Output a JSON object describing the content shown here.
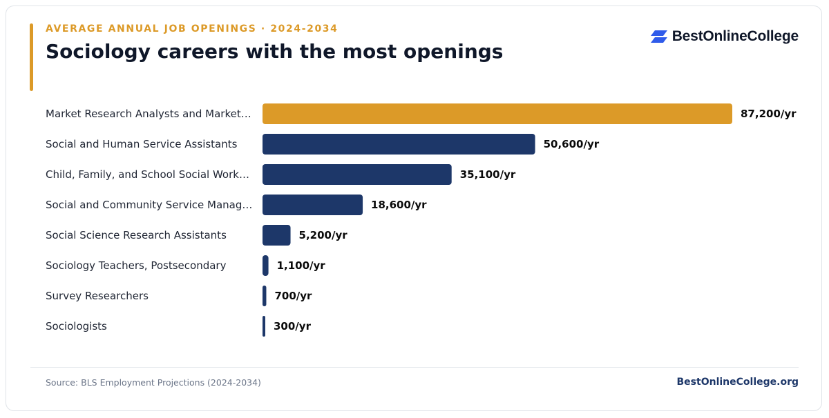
{
  "header": {
    "eyebrow": "AVERAGE ANNUAL JOB OPENINGS · 2024-2034",
    "title": "Sociology careers with the most openings"
  },
  "logo": {
    "text": "BestOnlineCollege",
    "icon": "stacked-parallelogram-logo-icon",
    "color": "#2f5bea"
  },
  "colors": {
    "highlight": "#dc9a28",
    "bar": "#1d3769",
    "label": "#1f2533",
    "value": "#0a0a0a"
  },
  "chart_data": {
    "type": "bar",
    "orientation": "horizontal",
    "categories": [
      "Market Research Analysts and Market…",
      "Social and Human Service Assistants",
      "Child, Family, and School Social Work…",
      "Social and Community Service Manag…",
      "Social Science Research Assistants",
      "Sociology Teachers, Postsecondary",
      "Survey Researchers",
      "Sociologists"
    ],
    "values": [
      87200,
      50600,
      35100,
      18600,
      5200,
      1100,
      700,
      300
    ],
    "value_labels": [
      "87,200/yr",
      "50,600/yr",
      "35,100/yr",
      "18,600/yr",
      "5,200/yr",
      "1,100/yr",
      "700/yr",
      "300/yr"
    ],
    "highlight_index": 0,
    "xlim": [
      0,
      87200
    ],
    "grid": false
  },
  "footer": {
    "source": "Source: BLS Employment Projections (2024-2034)",
    "site": "BestOnlineCollege.org"
  }
}
